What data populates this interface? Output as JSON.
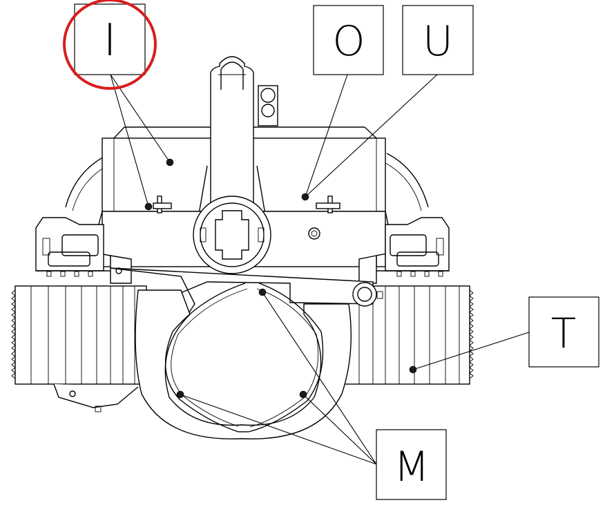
{
  "figure": {
    "callouts": [
      {
        "id": "I",
        "label": "I",
        "highlighted": true
      },
      {
        "id": "O",
        "label": "O",
        "highlighted": false
      },
      {
        "id": "U",
        "label": "U",
        "highlighted": false
      },
      {
        "id": "T",
        "label": "T",
        "highlighted": false
      },
      {
        "id": "M",
        "label": "M",
        "highlighted": false
      }
    ],
    "highlight_color": "#d81e1e"
  }
}
